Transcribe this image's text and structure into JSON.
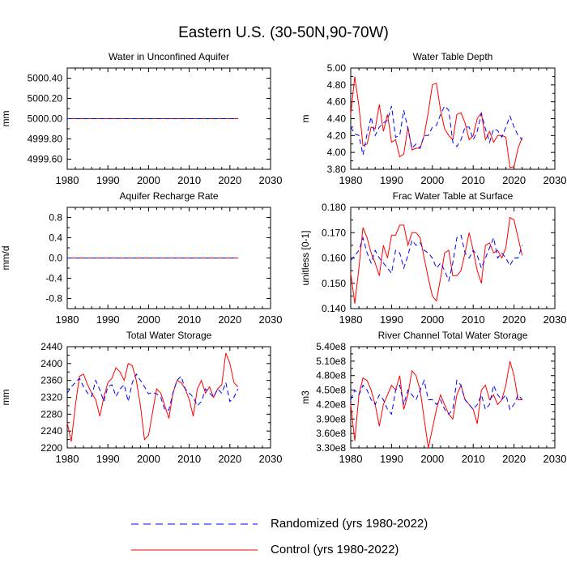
{
  "figure_title": "Eastern U.S. (30-50N,90-70W)",
  "legend": [
    {
      "label": "Randomized (yrs 1980-2022)",
      "color": "#0000ff",
      "dashed": true
    },
    {
      "label": "Control (yrs 1980-2022)",
      "color": "#ff0000",
      "dashed": false
    }
  ],
  "chart_data": [
    {
      "type": "line",
      "title": "Water in Unconfined Aquifer",
      "xlabel": "",
      "ylabel": "mm",
      "xlim": [
        1980,
        2030
      ],
      "ylim": [
        4999.5,
        5000.5
      ],
      "xticks": [
        1980,
        1990,
        2000,
        2010,
        2020,
        2030
      ],
      "yticks": [
        4999.6,
        4999.8,
        5000.0,
        5000.2,
        5000.4
      ],
      "ytick_labels": [
        "4999.60",
        "4999.80",
        "5000.00",
        "5000.20",
        "5000.40"
      ],
      "x_start": 1980,
      "series": [
        {
          "name": "Randomized (yrs 1980-2022)",
          "color": "#0000ff",
          "dashed": true,
          "values": [
            5000,
            5000,
            5000,
            5000,
            5000,
            5000,
            5000,
            5000,
            5000,
            5000,
            5000,
            5000,
            5000,
            5000,
            5000,
            5000,
            5000,
            5000,
            5000,
            5000,
            5000,
            5000,
            5000,
            5000,
            5000,
            5000,
            5000,
            5000,
            5000,
            5000,
            5000,
            5000,
            5000,
            5000,
            5000,
            5000,
            5000,
            5000,
            5000,
            5000,
            5000,
            5000,
            5000
          ]
        },
        {
          "name": "Control (yrs 1980-2022)",
          "color": "#ff0000",
          "dashed": false,
          "values": [
            5000,
            5000,
            5000,
            5000,
            5000,
            5000,
            5000,
            5000,
            5000,
            5000,
            5000,
            5000,
            5000,
            5000,
            5000,
            5000,
            5000,
            5000,
            5000,
            5000,
            5000,
            5000,
            5000,
            5000,
            5000,
            5000,
            5000,
            5000,
            5000,
            5000,
            5000,
            5000,
            5000,
            5000,
            5000,
            5000,
            5000,
            5000,
            5000,
            5000,
            5000,
            5000,
            5000
          ]
        }
      ]
    },
    {
      "type": "line",
      "title": "Water Table Depth",
      "xlabel": "",
      "ylabel": "m",
      "xlim": [
        1980,
        2030
      ],
      "ylim": [
        3.8,
        5.0
      ],
      "xticks": [
        1980,
        1990,
        2000,
        2010,
        2020,
        2030
      ],
      "yticks": [
        3.8,
        4.0,
        4.2,
        4.4,
        4.6,
        4.8,
        5.0
      ],
      "ytick_labels": [
        "3.80",
        "4.00",
        "4.20",
        "4.40",
        "4.60",
        "4.80",
        "5.00"
      ],
      "x_start": 1980,
      "series": [
        {
          "name": "Randomized (yrs 1980-2022)",
          "color": "#0000ff",
          "dashed": true,
          "values": [
            4.3,
            4.22,
            4.2,
            3.97,
            4.22,
            4.42,
            4.2,
            4.3,
            4.35,
            4.38,
            4.55,
            4.18,
            4.2,
            4.5,
            4.28,
            4.05,
            4.1,
            4.05,
            4.2,
            4.2,
            4.3,
            4.32,
            4.45,
            4.55,
            4.5,
            4.12,
            4.07,
            4.15,
            4.3,
            4.3,
            4.15,
            4.25,
            4.46,
            4.28,
            4.12,
            4.28,
            4.26,
            4.18,
            4.3,
            4.43,
            4.3,
            4.2,
            4.15
          ]
        },
        {
          "name": "Control (yrs 1980-2022)",
          "color": "#ff0000",
          "dashed": false,
          "values": [
            4.45,
            4.9,
            4.55,
            4.08,
            4.1,
            4.3,
            4.28,
            4.57,
            4.25,
            4.45,
            4.12,
            4.15,
            3.95,
            3.98,
            4.3,
            4.03,
            4.05,
            4.05,
            4.2,
            4.48,
            4.8,
            4.82,
            4.5,
            4.28,
            4.2,
            4.15,
            4.45,
            4.47,
            4.35,
            4.15,
            4.2,
            4.4,
            4.47,
            4.15,
            4.25,
            4.12,
            4.2,
            4.2,
            4.18,
            3.82,
            3.83,
            4.05,
            4.18
          ]
        }
      ]
    },
    {
      "type": "line",
      "title": "Aquifer Recharge Rate",
      "xlabel": "",
      "ylabel": "mm/d",
      "xlim": [
        1980,
        2030
      ],
      "ylim": [
        -1.0,
        1.0
      ],
      "xticks": [
        1980,
        1990,
        2000,
        2010,
        2020,
        2030
      ],
      "yticks": [
        -0.8,
        -0.4,
        0.0,
        0.4,
        0.8
      ],
      "ytick_labels": [
        "-0.8",
        "-0.4",
        "0.0",
        "0.4",
        "0.8"
      ],
      "x_start": 1980,
      "series": [
        {
          "name": "Randomized (yrs 1980-2022)",
          "color": "#0000ff",
          "dashed": true,
          "values": [
            0,
            0,
            0,
            0,
            0,
            0,
            0,
            0,
            0,
            0,
            0,
            0,
            0,
            0,
            0,
            0,
            0,
            0,
            0,
            0,
            0,
            0,
            0,
            0,
            0,
            0,
            0,
            0,
            0,
            0,
            0,
            0,
            0,
            0,
            0,
            0,
            0,
            0,
            0,
            0,
            0,
            0,
            0
          ]
        },
        {
          "name": "Control (yrs 1980-2022)",
          "color": "#ff0000",
          "dashed": false,
          "values": [
            0,
            0,
            0,
            0,
            0,
            0,
            0,
            0,
            0,
            0,
            0,
            0,
            0,
            0,
            0,
            0,
            0,
            0,
            0,
            0,
            0,
            0,
            0,
            0,
            0,
            0,
            0,
            0,
            0,
            0,
            0,
            0,
            0,
            0,
            0,
            0,
            0,
            0,
            0,
            0,
            0,
            0,
            0
          ]
        }
      ]
    },
    {
      "type": "line",
      "title": "Frac Water Table at Surface",
      "xlabel": "",
      "ylabel": "unitless [0-1]",
      "xlim": [
        1980,
        2030
      ],
      "ylim": [
        0.14,
        0.18
      ],
      "xticks": [
        1980,
        1990,
        2000,
        2010,
        2020,
        2030
      ],
      "yticks": [
        0.14,
        0.15,
        0.16,
        0.17,
        0.18
      ],
      "ytick_labels": [
        "0.140",
        "0.150",
        "0.160",
        "0.170",
        "0.180"
      ],
      "x_start": 1980,
      "series": [
        {
          "name": "Randomized (yrs 1980-2022)",
          "color": "#0000ff",
          "dashed": true,
          "values": [
            0.159,
            0.161,
            0.163,
            0.168,
            0.162,
            0.158,
            0.163,
            0.16,
            0.158,
            0.156,
            0.154,
            0.163,
            0.162,
            0.156,
            0.161,
            0.167,
            0.165,
            0.166,
            0.163,
            0.162,
            0.16,
            0.156,
            0.158,
            0.155,
            0.151,
            0.158,
            0.168,
            0.169,
            0.162,
            0.16,
            0.163,
            0.161,
            0.156,
            0.16,
            0.164,
            0.168,
            0.16,
            0.162,
            0.16,
            0.157,
            0.16,
            0.16,
            0.165
          ]
        },
        {
          "name": "Control (yrs 1980-2022)",
          "color": "#ff0000",
          "dashed": false,
          "values": [
            0.154,
            0.142,
            0.156,
            0.172,
            0.168,
            0.162,
            0.158,
            0.153,
            0.165,
            0.16,
            0.169,
            0.169,
            0.173,
            0.173,
            0.165,
            0.17,
            0.17,
            0.168,
            0.16,
            0.152,
            0.145,
            0.143,
            0.152,
            0.162,
            0.163,
            0.153,
            0.153,
            0.155,
            0.162,
            0.17,
            0.163,
            0.155,
            0.15,
            0.165,
            0.166,
            0.162,
            0.163,
            0.16,
            0.164,
            0.176,
            0.175,
            0.168,
            0.161
          ]
        }
      ]
    },
    {
      "type": "line",
      "title": "Total Water Storage",
      "xlabel": "",
      "ylabel": "mm",
      "xlim": [
        1980,
        2030
      ],
      "ylim": [
        2200,
        2440
      ],
      "xticks": [
        1980,
        1990,
        2000,
        2010,
        2020,
        2030
      ],
      "yticks": [
        2200,
        2240,
        2280,
        2320,
        2360,
        2400,
        2440
      ],
      "ytick_labels": [
        "2200",
        "2240",
        "2280",
        "2320",
        "2360",
        "2400",
        "2440"
      ],
      "x_start": 1980,
      "series": [
        {
          "name": "Randomized (yrs 1980-2022)",
          "color": "#0000ff",
          "dashed": true,
          "values": [
            2330,
            2345,
            2355,
            2365,
            2345,
            2330,
            2322,
            2360,
            2338,
            2310,
            2345,
            2350,
            2322,
            2340,
            2350,
            2310,
            2355,
            2375,
            2360,
            2345,
            2328,
            2332,
            2328,
            2320,
            2290,
            2290,
            2330,
            2360,
            2370,
            2340,
            2330,
            2320,
            2300,
            2310,
            2340,
            2330,
            2320,
            2340,
            2330,
            2355,
            2310,
            2320,
            2340
          ]
        },
        {
          "name": "Control (yrs 1980-2022)",
          "color": "#ff0000",
          "dashed": false,
          "values": [
            2260,
            2215,
            2300,
            2370,
            2375,
            2350,
            2330,
            2315,
            2275,
            2320,
            2355,
            2365,
            2390,
            2380,
            2360,
            2400,
            2395,
            2360,
            2300,
            2220,
            2230,
            2285,
            2340,
            2330,
            2300,
            2270,
            2330,
            2360,
            2355,
            2340,
            2315,
            2275,
            2340,
            2360,
            2330,
            2345,
            2320,
            2340,
            2350,
            2425,
            2400,
            2355,
            2345
          ]
        }
      ]
    },
    {
      "type": "line",
      "title": "River Channel Total Water Storage",
      "xlabel": "",
      "ylabel": "m3",
      "xlim": [
        1980,
        2030
      ],
      "ylim": [
        330000000,
        540000000
      ],
      "xticks": [
        1980,
        1990,
        2000,
        2010,
        2020,
        2030
      ],
      "yticks": [
        330000000,
        360000000,
        390000000,
        420000000,
        450000000,
        480000000,
        510000000,
        540000000
      ],
      "ytick_labels": [
        "3.30e8",
        "3.60e8",
        "3.90e8",
        "4.20e8",
        "4.50e8",
        "4.80e8",
        "5.10e8",
        "5.40e8"
      ],
      "x_start": 1980,
      "series": [
        {
          "name": "Randomized (yrs 1980-2022)",
          "color": "#0000ff",
          "dashed": true,
          "values": [
            430000000,
            450000000,
            440000000,
            460000000,
            450000000,
            430000000,
            420000000,
            440000000,
            430000000,
            410000000,
            400000000,
            450000000,
            460000000,
            420000000,
            450000000,
            440000000,
            430000000,
            450000000,
            470000000,
            430000000,
            430000000,
            420000000,
            430000000,
            410000000,
            400000000,
            410000000,
            470000000,
            460000000,
            430000000,
            420000000,
            410000000,
            420000000,
            440000000,
            410000000,
            420000000,
            460000000,
            440000000,
            430000000,
            440000000,
            410000000,
            420000000,
            440000000,
            430000000
          ]
        },
        {
          "name": "Control (yrs 1980-2022)",
          "color": "#ff0000",
          "dashed": false,
          "values": [
            420000000,
            345000000,
            440000000,
            475000000,
            470000000,
            450000000,
            420000000,
            375000000,
            420000000,
            440000000,
            460000000,
            450000000,
            480000000,
            410000000,
            440000000,
            490000000,
            480000000,
            450000000,
            390000000,
            330000000,
            370000000,
            410000000,
            440000000,
            420000000,
            400000000,
            390000000,
            440000000,
            460000000,
            430000000,
            420000000,
            410000000,
            380000000,
            450000000,
            460000000,
            430000000,
            440000000,
            420000000,
            430000000,
            460000000,
            510000000,
            480000000,
            430000000,
            430000000
          ]
        }
      ]
    }
  ]
}
